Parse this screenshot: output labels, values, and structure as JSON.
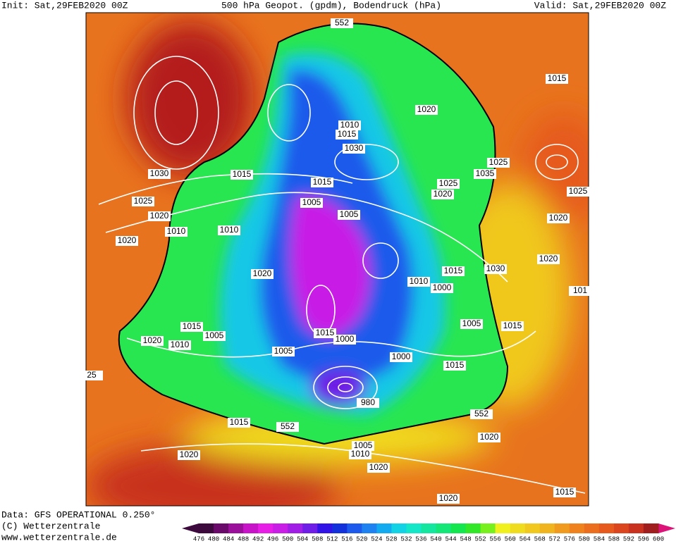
{
  "header": {
    "init": "Init: Sat,29FEB2020 00Z",
    "title": "500 hPa Geopot. (gpdm), Bodendruck (hPa)",
    "valid": "Valid: Sat,29FEB2020 00Z"
  },
  "footer": {
    "data": "Data: GFS OPERATIONAL 0.250°",
    "copyright": "(C) Wetterzentrale",
    "url": "www.wetterzentrale.de"
  },
  "colorbar": {
    "values": [
      476,
      480,
      484,
      488,
      492,
      496,
      500,
      504,
      508,
      512,
      516,
      520,
      524,
      528,
      532,
      536,
      540,
      544,
      548,
      552,
      556,
      560,
      564,
      568,
      572,
      576,
      580,
      584,
      588,
      592,
      596,
      600
    ],
    "colors": [
      "#3c0a3c",
      "#6a0a6a",
      "#9a109a",
      "#c814c8",
      "#e61ee6",
      "#c81ee6",
      "#a01ee6",
      "#6e1ee6",
      "#3214e6",
      "#1432dc",
      "#1e5aeb",
      "#1e82f0",
      "#14aaf0",
      "#14d2e6",
      "#14e6c8",
      "#14e6a0",
      "#14e678",
      "#14e650",
      "#32e628",
      "#78f01e",
      "#f0f01e",
      "#f0dc1e",
      "#f0c81e",
      "#f0b41e",
      "#f09a1e",
      "#f0821e",
      "#eb6e1e",
      "#e65a1e",
      "#dc461e",
      "#c8321e",
      "#a01e1e"
    ]
  },
  "isobar_labels": [
    "552",
    "1015",
    "1020",
    "1010",
    "1015",
    "1030",
    "1025",
    "1035",
    "1030",
    "1015",
    "1015",
    "1025",
    "1020",
    "1025",
    "1025",
    "1005",
    "1020",
    "1005",
    "1020",
    "1010",
    "1010",
    "1020",
    "1020",
    "1030",
    "1015",
    "1020",
    "1010",
    "1000",
    "101",
    "1005",
    "1015",
    "1015",
    "1005",
    "1015",
    "1000",
    "1020",
    "1010",
    "1005",
    "1000",
    "1015",
    "980",
    "552",
    "1015",
    "552",
    "1005",
    "1010",
    "1020",
    "1020",
    "1020",
    "1015",
    "1020",
    "25"
  ]
}
